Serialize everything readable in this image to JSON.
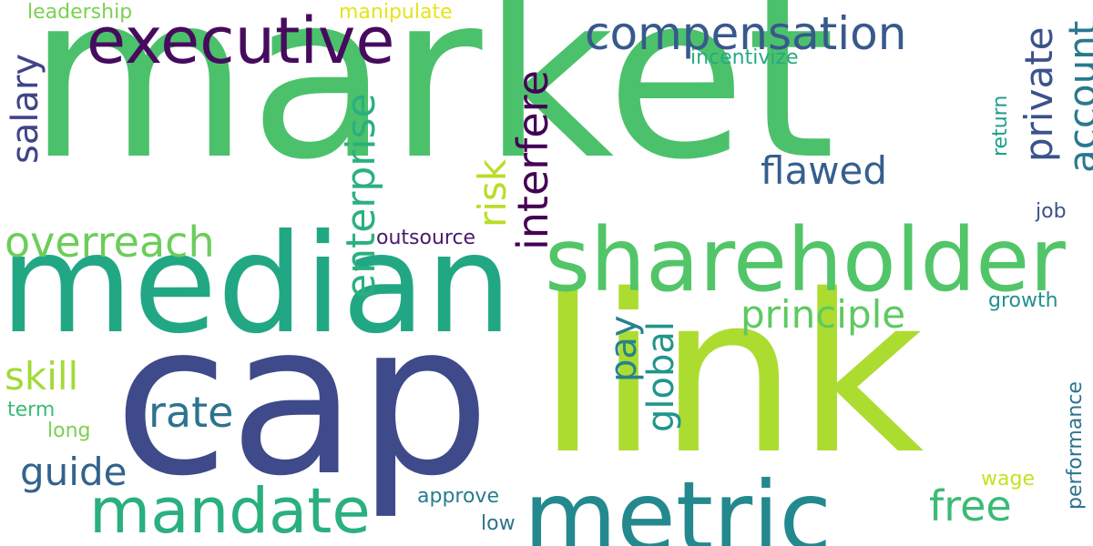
{
  "words": [
    {
      "text": "market",
      "color": "#4cc16b"
    },
    {
      "text": "median",
      "color": "#22a784"
    },
    {
      "text": "cap",
      "color": "#3e4a89"
    },
    {
      "text": "link",
      "color": "#addc30"
    },
    {
      "text": "metric",
      "color": "#23898e"
    },
    {
      "text": "shareholder",
      "color": "#52c569"
    },
    {
      "text": "executive",
      "color": "#460b5e"
    },
    {
      "text": "compensation",
      "color": "#38598c"
    },
    {
      "text": "mandate",
      "color": "#2ab07f"
    },
    {
      "text": "overreach",
      "color": "#6ccd5a"
    },
    {
      "text": "principle",
      "color": "#5ec962"
    },
    {
      "text": "flawed",
      "color": "#355f8d"
    },
    {
      "text": "free",
      "color": "#3bbb75"
    },
    {
      "text": "rate",
      "color": "#2c738e"
    },
    {
      "text": "guide",
      "color": "#33638d"
    },
    {
      "text": "skill",
      "color": "#a2da37"
    },
    {
      "text": "interfere",
      "color": "#440154"
    },
    {
      "text": "enterprise",
      "color": "#2ab07f"
    },
    {
      "text": "private",
      "color": "#3b528b"
    },
    {
      "text": "account",
      "color": "#29798e"
    },
    {
      "text": "salary",
      "color": "#414487"
    },
    {
      "text": "risk",
      "color": "#b8de29"
    },
    {
      "text": "pay",
      "color": "#26828e"
    },
    {
      "text": "global",
      "color": "#1f968b"
    },
    {
      "text": "outsource",
      "color": "#481a6c"
    },
    {
      "text": "leadership",
      "color": "#7ad151"
    },
    {
      "text": "manipulate",
      "color": "#e5e419"
    },
    {
      "text": "incentivize",
      "color": "#25ab82"
    },
    {
      "text": "return",
      "color": "#1f9f88"
    },
    {
      "text": "job",
      "color": "#3b528b"
    },
    {
      "text": "growth",
      "color": "#21918c"
    },
    {
      "text": "performance",
      "color": "#2c738e"
    },
    {
      "text": "wage",
      "color": "#c8e020"
    },
    {
      "text": "approve",
      "color": "#287c8e"
    },
    {
      "text": "low",
      "color": "#2c738e"
    },
    {
      "text": "term",
      "color": "#3bbb75"
    },
    {
      "text": "long",
      "color": "#7ad151"
    }
  ]
}
